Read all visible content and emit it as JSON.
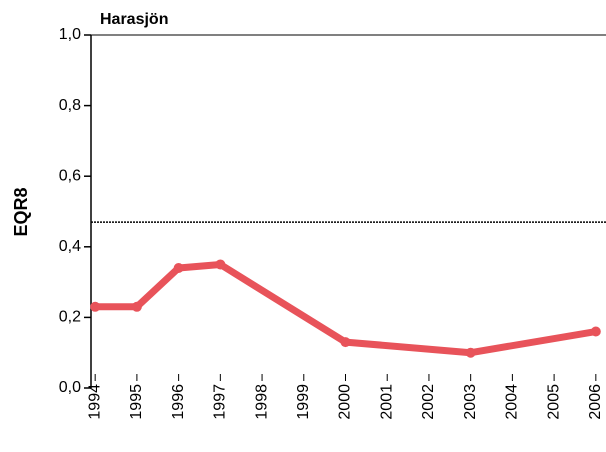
{
  "chart_data": {
    "type": "line",
    "title": "Harasjön",
    "y_label": "EQR8",
    "x": [
      1994,
      1995,
      1996,
      1997,
      2000,
      2003,
      2006
    ],
    "series": [
      {
        "name": "EQR8",
        "color": "#e8535a",
        "values": [
          0.23,
          0.23,
          0.34,
          0.35,
          0.13,
          0.1,
          0.16
        ]
      }
    ],
    "xlim": [
      1993.9,
      2006.1
    ],
    "xticks": [
      1994,
      1995,
      1996,
      1997,
      1998,
      1999,
      2000,
      2001,
      2002,
      2003,
      2004,
      2005,
      2006
    ],
    "ylim": [
      0,
      1
    ],
    "yticks": [
      {
        "value": 0,
        "label": "0,0"
      },
      {
        "value": 0.2,
        "label": "0,2"
      },
      {
        "value": 0.4,
        "label": "0,4"
      },
      {
        "value": 0.6,
        "label": "0,6"
      },
      {
        "value": 0.8,
        "label": "0,8"
      },
      {
        "value": 1,
        "label": "1,0"
      }
    ],
    "reference_line": 0.47
  }
}
